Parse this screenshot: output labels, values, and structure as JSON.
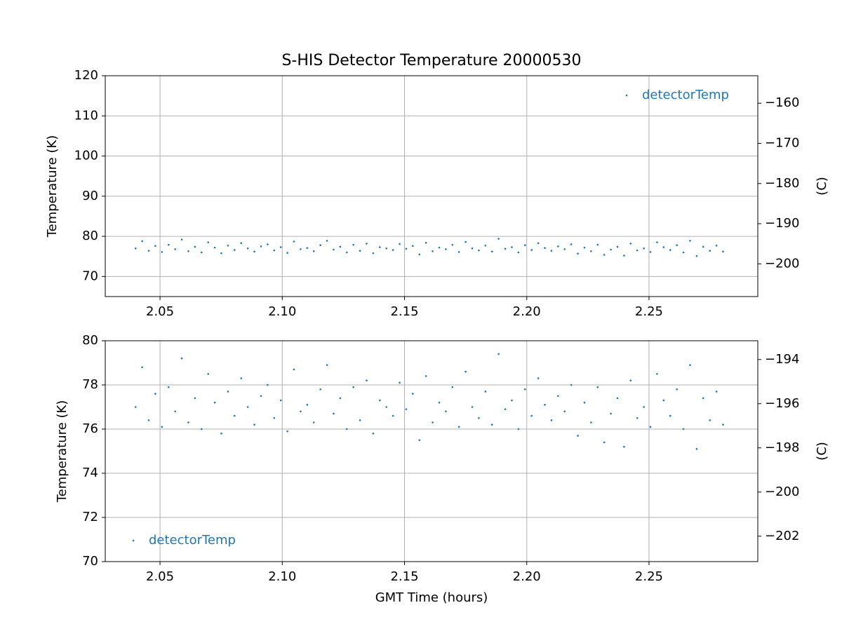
{
  "chart_data": [
    {
      "type": "scatter",
      "title": "S-HIS Detector Temperature 20000530",
      "ylabel": "Temperature (K)",
      "y2label": "(C)",
      "xlim": [
        2.0276,
        2.2945
      ],
      "xticks": [
        2.05,
        {
          "value": 2.1,
          "label": "2.10"
        },
        2.15,
        {
          "value": 2.2,
          "label": "2.20"
        },
        2.25
      ],
      "ylim": [
        65,
        120
      ],
      "yticks": [
        70,
        80,
        90,
        100,
        110,
        120
      ],
      "y2lim": [
        -208.15,
        -153.15
      ],
      "y2ticks": [
        {
          "value": -200,
          "label": "−200"
        },
        {
          "value": -190,
          "label": "−190"
        },
        {
          "value": -180,
          "label": "−180"
        },
        {
          "value": -170,
          "label": "−170"
        },
        {
          "value": -160,
          "label": "−160"
        }
      ],
      "grid": true,
      "legend": "upper right",
      "x": [
        2.04,
        2.0427,
        2.0454,
        2.0481,
        2.0508,
        2.0535,
        2.0562,
        2.0589,
        2.0616,
        2.0643,
        2.067,
        2.0697,
        2.0724,
        2.0751,
        2.0778,
        2.0805,
        2.0832,
        2.0859,
        2.0886,
        2.0913,
        2.094,
        2.0967,
        2.0994,
        2.1021,
        2.1048,
        2.1075,
        2.1102,
        2.1129,
        2.1156,
        2.1183,
        2.121,
        2.1237,
        2.1264,
        2.1291,
        2.1318,
        2.1345,
        2.1372,
        2.1399,
        2.1426,
        2.1453,
        2.148,
        2.1507,
        2.1534,
        2.1561,
        2.1588,
        2.1615,
        2.1642,
        2.1669,
        2.1696,
        2.1723,
        2.175,
        2.1777,
        2.1804,
        2.1831,
        2.1858,
        2.1885,
        2.1912,
        2.1939,
        2.1966,
        2.1993,
        2.202,
        2.2047,
        2.2074,
        2.2101,
        2.2128,
        2.2155,
        2.2182,
        2.2209,
        2.2236,
        2.2263,
        2.229,
        2.2317,
        2.2344,
        2.2371,
        2.2398,
        2.2425,
        2.2452,
        2.2479,
        2.2506,
        2.2533,
        2.256,
        2.2587,
        2.2614,
        2.2641,
        2.2668,
        2.2695,
        2.2722,
        2.2749,
        2.2776,
        2.2803
      ],
      "series": [
        {
          "name": "detectorTemp",
          "color": "#1f77b4",
          "values": [
            77.0,
            78.8,
            76.4,
            77.6,
            76.1,
            77.9,
            76.8,
            79.2,
            76.3,
            77.4,
            76.0,
            78.5,
            77.2,
            75.8,
            77.7,
            76.6,
            78.3,
            77.0,
            76.2,
            77.5,
            78.0,
            76.5,
            77.3,
            75.9,
            78.7,
            76.8,
            77.1,
            76.3,
            77.8,
            78.9,
            76.7,
            77.4,
            76.0,
            77.9,
            76.4,
            78.2,
            75.8,
            77.3,
            77.0,
            76.6,
            78.1,
            76.9,
            77.6,
            75.5,
            78.4,
            76.3,
            77.2,
            76.8,
            77.9,
            76.1,
            78.6,
            77.0,
            76.5,
            77.7,
            76.2,
            79.4,
            76.9,
            77.3,
            76.0,
            77.8,
            76.6,
            78.3,
            77.1,
            76.4,
            77.5,
            76.8,
            78.0,
            75.7,
            77.2,
            76.3,
            77.9,
            75.4,
            76.7,
            77.4,
            75.2,
            78.2,
            76.5,
            77.0,
            76.1,
            78.5,
            77.3,
            76.6,
            77.8,
            76.0,
            78.9,
            75.1,
            77.4,
            76.4,
            77.7,
            76.2
          ]
        }
      ]
    },
    {
      "type": "scatter",
      "ylabel": "Temperature (K)",
      "y2label": "(C)",
      "xlabel": "GMT Time (hours)",
      "xlim": [
        2.0276,
        2.2945
      ],
      "xticks": [
        2.05,
        {
          "value": 2.1,
          "label": "2.10"
        },
        2.15,
        {
          "value": 2.2,
          "label": "2.20"
        },
        2.25
      ],
      "ylim": [
        70,
        80
      ],
      "yticks": [
        70,
        72,
        74,
        76,
        78,
        80
      ],
      "y2lim": [
        -203.15,
        -193.15
      ],
      "y2ticks": [
        {
          "value": -202,
          "label": "−202"
        },
        {
          "value": -200,
          "label": "−200"
        },
        {
          "value": -198,
          "label": "−198"
        },
        {
          "value": -196,
          "label": "−196"
        },
        {
          "value": -194,
          "label": "−194"
        }
      ],
      "grid": true,
      "legend": "lower left",
      "x": [
        2.04,
        2.0427,
        2.0454,
        2.0481,
        2.0508,
        2.0535,
        2.0562,
        2.0589,
        2.0616,
        2.0643,
        2.067,
        2.0697,
        2.0724,
        2.0751,
        2.0778,
        2.0805,
        2.0832,
        2.0859,
        2.0886,
        2.0913,
        2.094,
        2.0967,
        2.0994,
        2.1021,
        2.1048,
        2.1075,
        2.1102,
        2.1129,
        2.1156,
        2.1183,
        2.121,
        2.1237,
        2.1264,
        2.1291,
        2.1318,
        2.1345,
        2.1372,
        2.1399,
        2.1426,
        2.1453,
        2.148,
        2.1507,
        2.1534,
        2.1561,
        2.1588,
        2.1615,
        2.1642,
        2.1669,
        2.1696,
        2.1723,
        2.175,
        2.1777,
        2.1804,
        2.1831,
        2.1858,
        2.1885,
        2.1912,
        2.1939,
        2.1966,
        2.1993,
        2.202,
        2.2047,
        2.2074,
        2.2101,
        2.2128,
        2.2155,
        2.2182,
        2.2209,
        2.2236,
        2.2263,
        2.229,
        2.2317,
        2.2344,
        2.2371,
        2.2398,
        2.2425,
        2.2452,
        2.2479,
        2.2506,
        2.2533,
        2.256,
        2.2587,
        2.2614,
        2.2641,
        2.2668,
        2.2695,
        2.2722,
        2.2749,
        2.2776,
        2.2803
      ],
      "series": [
        {
          "name": "detectorTemp",
          "color": "#1f77b4",
          "values": [
            77.0,
            78.8,
            76.4,
            77.6,
            76.1,
            77.9,
            76.8,
            79.2,
            76.3,
            77.4,
            76.0,
            78.5,
            77.2,
            75.8,
            77.7,
            76.6,
            78.3,
            77.0,
            76.2,
            77.5,
            78.0,
            76.5,
            77.3,
            75.9,
            78.7,
            76.8,
            77.1,
            76.3,
            77.8,
            78.9,
            76.7,
            77.4,
            76.0,
            77.9,
            76.4,
            78.2,
            75.8,
            77.3,
            77.0,
            76.6,
            78.1,
            76.9,
            77.6,
            75.5,
            78.4,
            76.3,
            77.2,
            76.8,
            77.9,
            76.1,
            78.6,
            77.0,
            76.5,
            77.7,
            76.2,
            79.4,
            76.9,
            77.3,
            76.0,
            77.8,
            76.6,
            78.3,
            77.1,
            76.4,
            77.5,
            76.8,
            78.0,
            75.7,
            77.2,
            76.3,
            77.9,
            75.4,
            76.7,
            77.4,
            75.2,
            78.2,
            76.5,
            77.0,
            76.1,
            78.5,
            77.3,
            76.6,
            77.8,
            76.0,
            78.9,
            75.1,
            77.4,
            76.4,
            77.7,
            76.2
          ]
        }
      ]
    }
  ]
}
